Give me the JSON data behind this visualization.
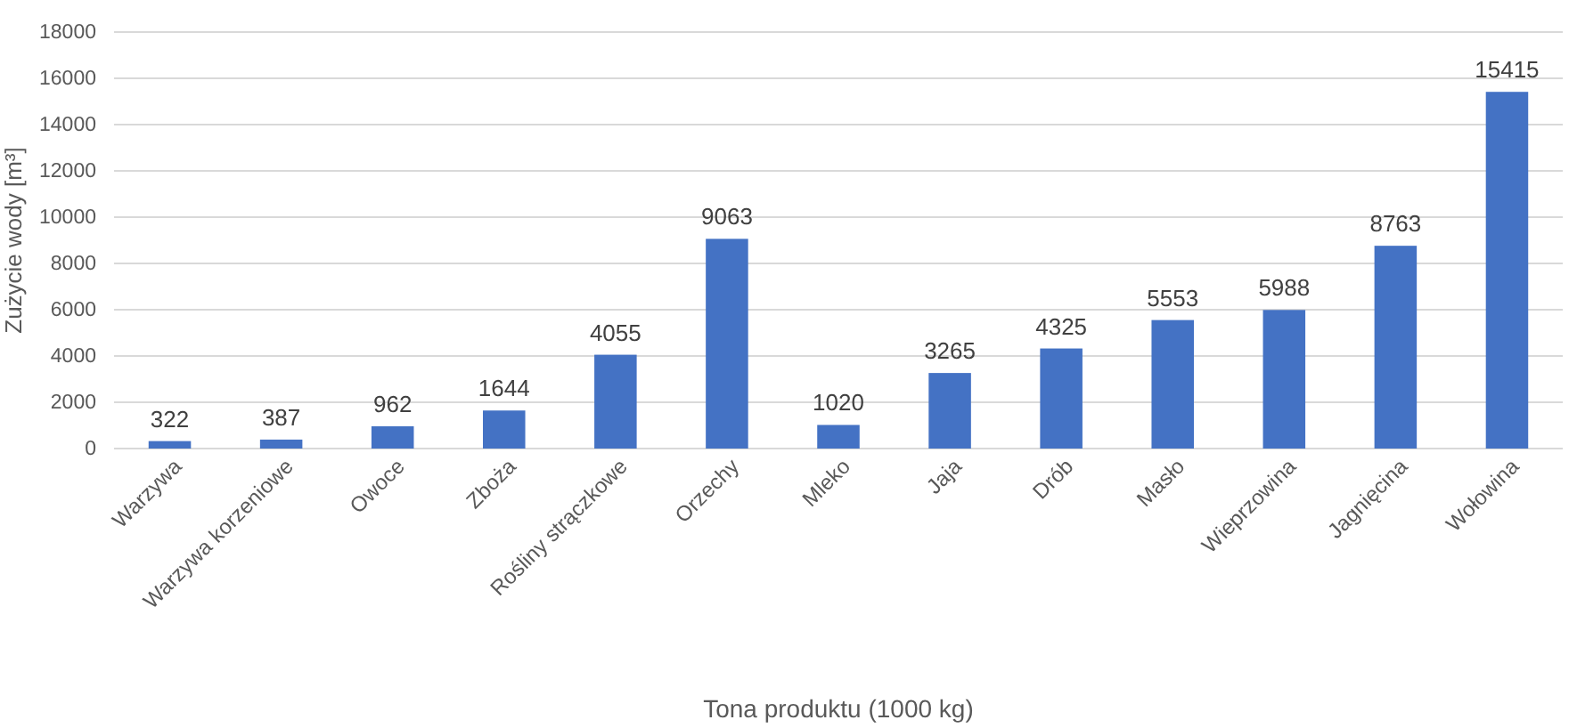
{
  "chart_data": {
    "type": "bar",
    "xlabel": "Tona produktu (1000 kg)",
    "ylabel": "Zużycie wody [m³]",
    "categories": [
      "Warzywa",
      "Warzywa korzeniowe",
      "Owoce",
      "Zboża",
      "Rośliny strączkowe",
      "Orzechy",
      "Mleko",
      "Jaja",
      "Drób",
      "Masło",
      "Wieprzowina",
      "Jagnięcina",
      "Wołowina"
    ],
    "values": [
      322,
      387,
      962,
      1644,
      4055,
      9063,
      1020,
      3265,
      4325,
      5553,
      5988,
      8763,
      15415
    ],
    "color": "#4472c4",
    "ylim": [
      0,
      18000
    ],
    "yticks": [
      0,
      2000,
      4000,
      6000,
      8000,
      10000,
      12000,
      14000,
      16000,
      18000
    ],
    "grid": "y",
    "data_labels": true
  }
}
